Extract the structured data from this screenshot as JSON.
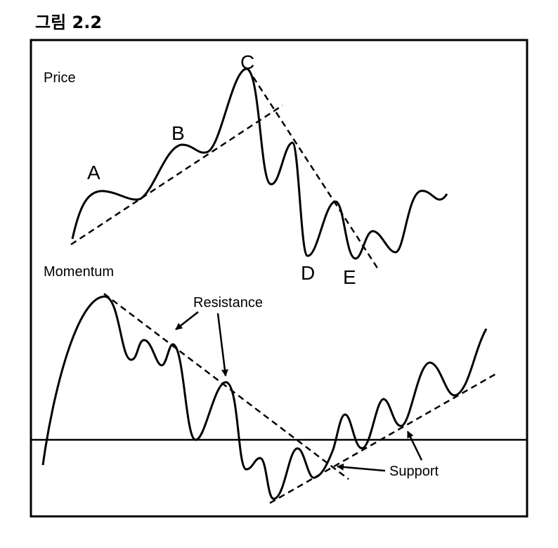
{
  "figure_title": "그림 2.2",
  "panels": {
    "price": {
      "label": "Price"
    },
    "momentum": {
      "label": "Momentum"
    }
  },
  "points": {
    "A": "A",
    "B": "B",
    "C": "C",
    "D": "D",
    "E": "E"
  },
  "annotations": {
    "resistance": "Resistance",
    "support": "Support"
  },
  "colors": {
    "ink": "#000000",
    "background": "#ffffff"
  }
}
